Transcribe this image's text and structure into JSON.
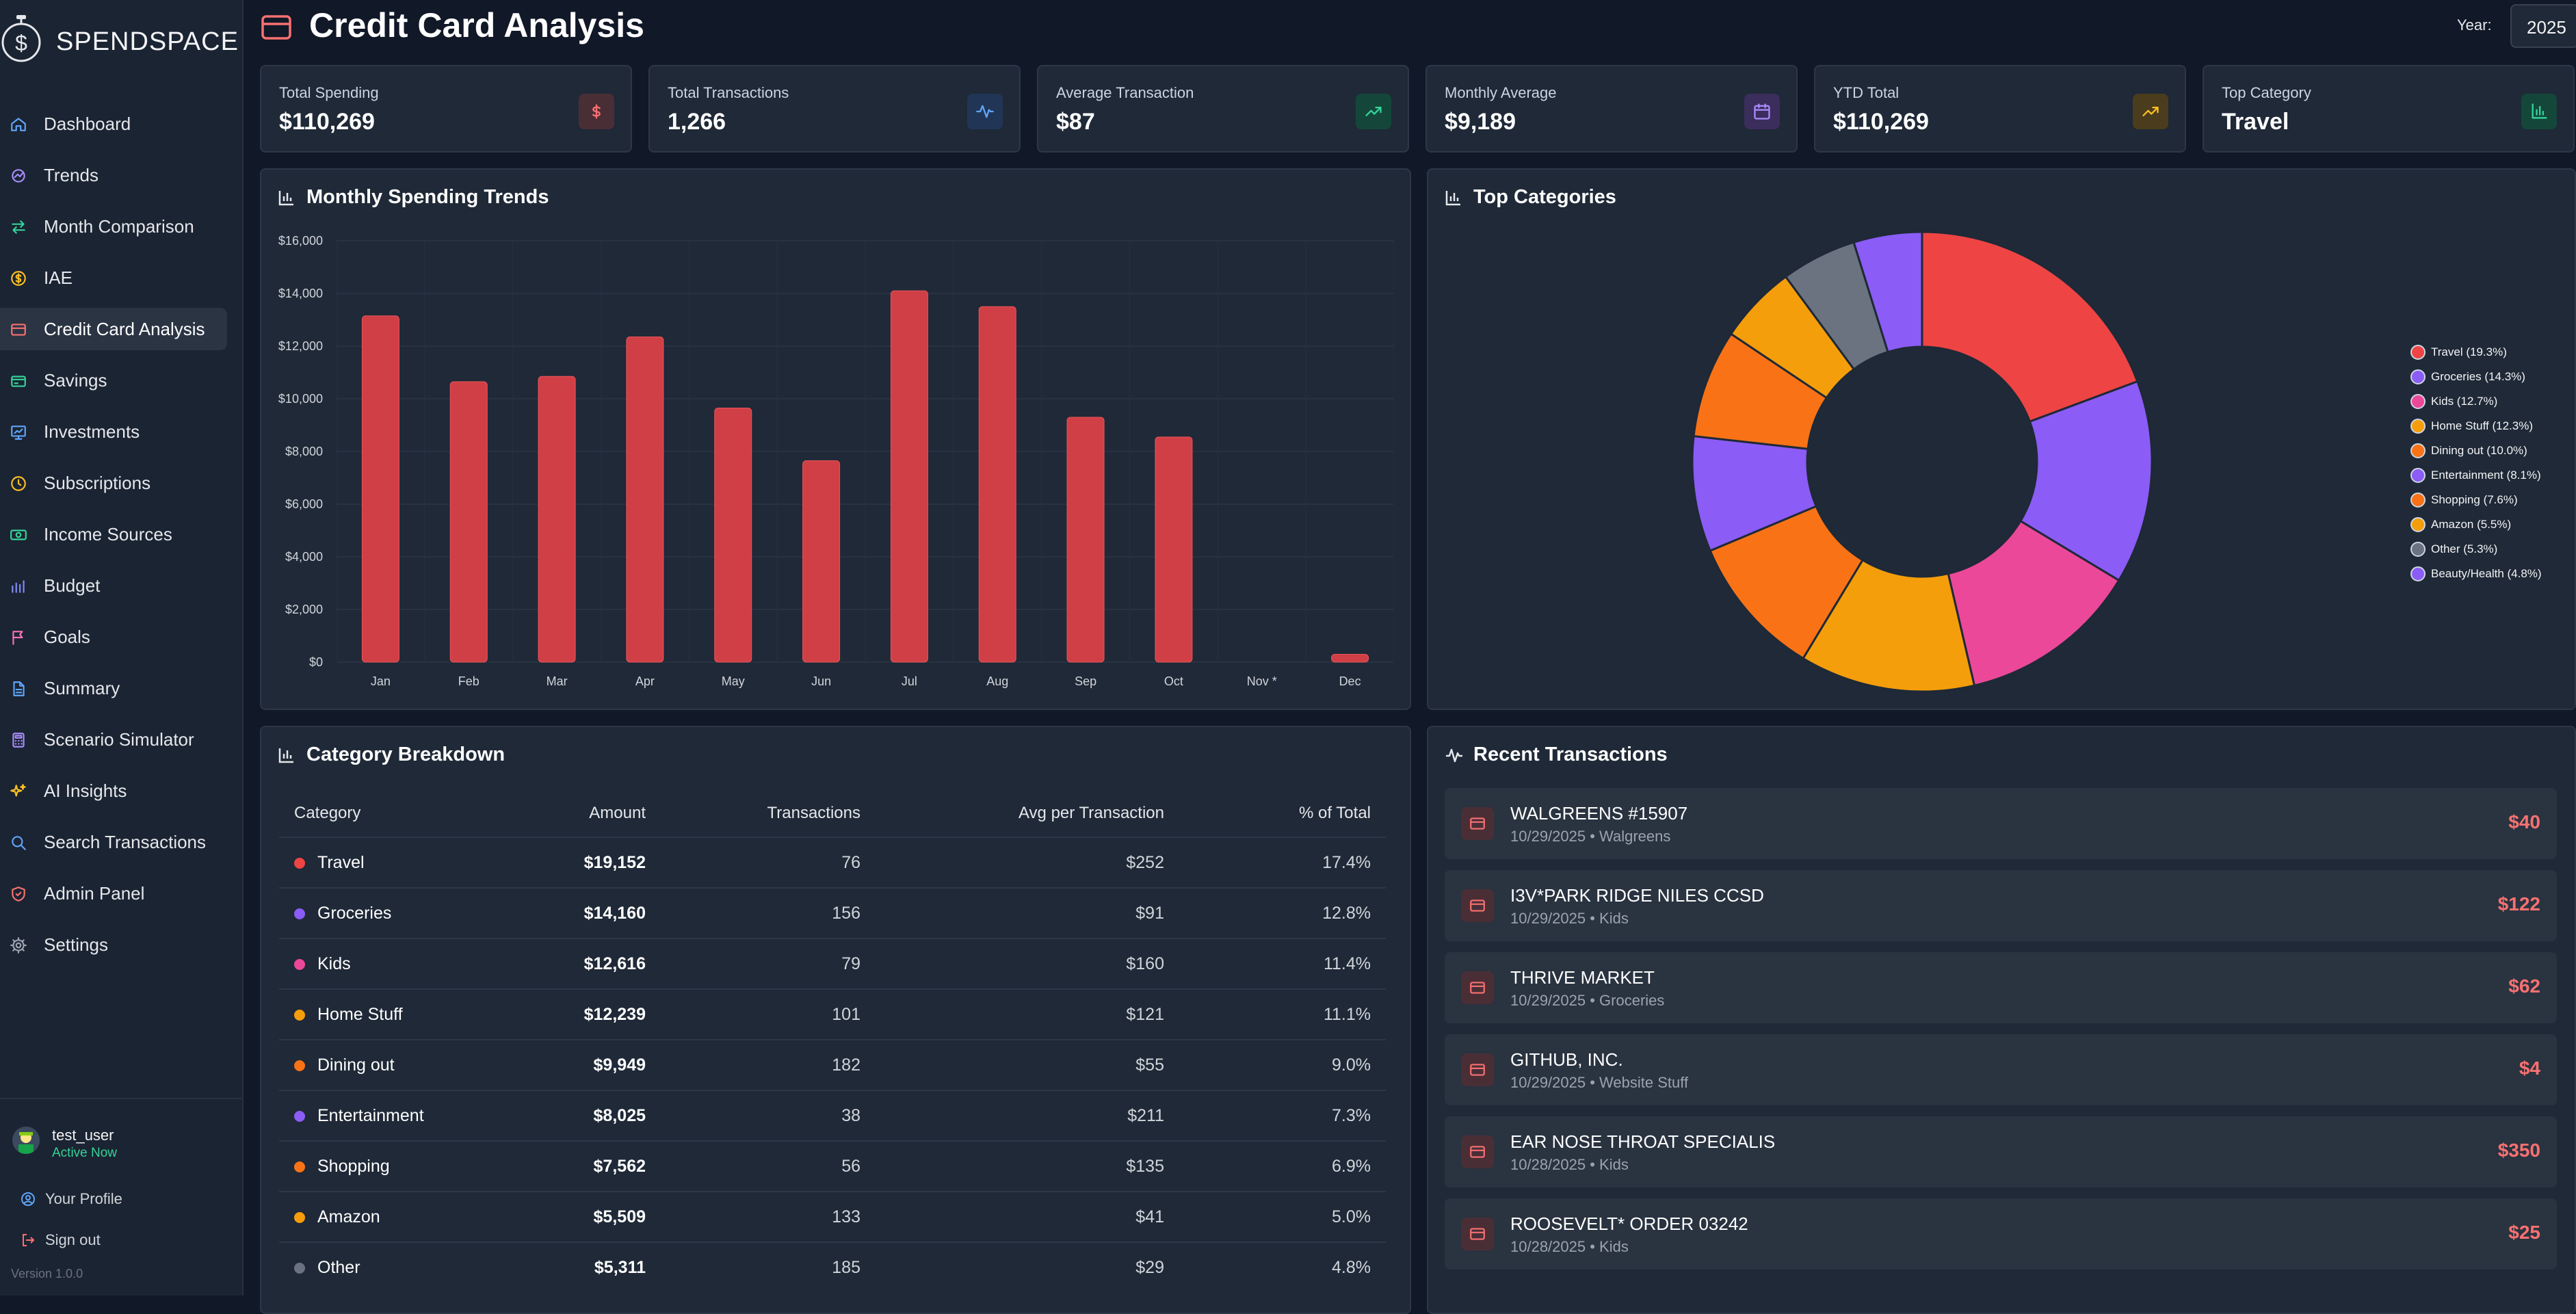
{
  "app": {
    "brand": "SPENDSPACE",
    "version": "Version 1.0.0"
  },
  "sidebar": {
    "items": [
      {
        "label": "Dashboard",
        "icon": "home-icon",
        "color": "#60a5fa"
      },
      {
        "label": "Trends",
        "icon": "trends-icon",
        "color": "#a78bfa"
      },
      {
        "label": "Month Comparison",
        "icon": "arrows-icon",
        "color": "#34d399"
      },
      {
        "label": "IAE",
        "icon": "dollar-circle-icon",
        "color": "#fbbf24"
      },
      {
        "label": "Credit Card Analysis",
        "icon": "credit-card-icon",
        "color": "#f87171"
      },
      {
        "label": "Savings",
        "icon": "savings-icon",
        "color": "#34d399"
      },
      {
        "label": "Investments",
        "icon": "investments-icon",
        "color": "#60a5fa"
      },
      {
        "label": "Subscriptions",
        "icon": "clock-icon",
        "color": "#fbbf24"
      },
      {
        "label": "Income Sources",
        "icon": "money-icon",
        "color": "#34d399"
      },
      {
        "label": "Budget",
        "icon": "budget-icon",
        "color": "#818cf8"
      },
      {
        "label": "Goals",
        "icon": "flag-icon",
        "color": "#f472b6"
      },
      {
        "label": "Summary",
        "icon": "document-icon",
        "color": "#60a5fa"
      },
      {
        "label": "Scenario Simulator",
        "icon": "calculator-icon",
        "color": "#a78bfa"
      },
      {
        "label": "AI Insights",
        "icon": "sparkles-icon",
        "color": "#fbbf24"
      },
      {
        "label": "Search Transactions",
        "icon": "search-icon",
        "color": "#60a5fa"
      },
      {
        "label": "Admin Panel",
        "icon": "shield-icon",
        "color": "#f87171"
      },
      {
        "label": "Settings",
        "icon": "gear-icon",
        "color": "#9ca3af"
      }
    ],
    "active_index": 4
  },
  "user": {
    "name": "test_user",
    "status": "Active Now",
    "profile_label": "Your Profile",
    "signout_label": "Sign out"
  },
  "header": {
    "title": "Credit Card Analysis",
    "year_label": "Year:",
    "year_value": "2025"
  },
  "stats": [
    {
      "label": "Total Spending",
      "value": "$110,269",
      "icon": "dollar-icon",
      "bg": "#4a2e36",
      "fg": "#f87171"
    },
    {
      "label": "Total Transactions",
      "value": "1,266",
      "icon": "activity-icon",
      "bg": "#213656",
      "fg": "#60a5fa"
    },
    {
      "label": "Average Transaction",
      "value": "$87",
      "icon": "trending-up-icon",
      "bg": "#14473a",
      "fg": "#34d399"
    },
    {
      "label": "Monthly Average",
      "value": "$9,189",
      "icon": "calendar-icon",
      "bg": "#3b2d5c",
      "fg": "#a78bfa"
    },
    {
      "label": "YTD Total",
      "value": "$110,269",
      "icon": "trending-up-icon",
      "bg": "#4a3c1c",
      "fg": "#fbbf24"
    },
    {
      "label": "Top Category",
      "value": "Travel",
      "icon": "bar-chart-icon",
      "bg": "#14473a",
      "fg": "#34d399"
    }
  ],
  "panels": {
    "monthly_title": "Monthly Spending Trends",
    "categories_title": "Top Categories",
    "breakdown_title": "Category Breakdown",
    "recent_title": "Recent Transactions"
  },
  "chart_data": [
    {
      "type": "bar",
      "title": "Monthly Spending Trends",
      "categories": [
        "Jan",
        "Feb",
        "Mar",
        "Apr",
        "May",
        "Jun",
        "Jul",
        "Aug",
        "Sep",
        "Oct",
        "Nov *",
        "Dec"
      ],
      "values": [
        13150,
        10650,
        10850,
        12350,
        9650,
        7650,
        14100,
        13500,
        9300,
        8550,
        0,
        300
      ],
      "ylim": [
        0,
        16000
      ],
      "yticks": [
        "$0",
        "$2,000",
        "$4,000",
        "$6,000",
        "$8,000",
        "$10,000",
        "$12,000",
        "$14,000",
        "$16,000"
      ],
      "grid": true,
      "bar_color": "#d03f45"
    },
    {
      "type": "pie",
      "title": "Top Categories",
      "legend_position": "right",
      "slices": [
        {
          "label": "Travel (19.3%)",
          "value": 19.3,
          "color": "#ef4444"
        },
        {
          "label": "Groceries (14.3%)",
          "value": 14.3,
          "color": "#8b5cf6"
        },
        {
          "label": "Kids (12.7%)",
          "value": 12.7,
          "color": "#ec4899"
        },
        {
          "label": "Home Stuff (12.3%)",
          "value": 12.3,
          "color": "#f59e0b"
        },
        {
          "label": "Dining out (10.0%)",
          "value": 10.0,
          "color": "#f97316"
        },
        {
          "label": "Entertainment (8.1%)",
          "value": 8.1,
          "color": "#8b5cf6"
        },
        {
          "label": "Shopping (7.6%)",
          "value": 7.6,
          "color": "#f97316"
        },
        {
          "label": "Amazon (5.5%)",
          "value": 5.5,
          "color": "#f59e0b"
        },
        {
          "label": "Other (5.3%)",
          "value": 5.3,
          "color": "#6b7280"
        },
        {
          "label": "Beauty/Health (4.8%)",
          "value": 4.8,
          "color": "#8b5cf6"
        }
      ]
    }
  ],
  "breakdown": {
    "headers": [
      "Category",
      "Amount",
      "Transactions",
      "Avg per Transaction",
      "% of Total"
    ],
    "rows": [
      {
        "category": "Travel",
        "amount": "$19,152",
        "transactions": "76",
        "avg": "$252",
        "pct": "17.4%",
        "color": "#ef4444"
      },
      {
        "category": "Groceries",
        "amount": "$14,160",
        "transactions": "156",
        "avg": "$91",
        "pct": "12.8%",
        "color": "#8b5cf6"
      },
      {
        "category": "Kids",
        "amount": "$12,616",
        "transactions": "79",
        "avg": "$160",
        "pct": "11.4%",
        "color": "#ec4899"
      },
      {
        "category": "Home Stuff",
        "amount": "$12,239",
        "transactions": "101",
        "avg": "$121",
        "pct": "11.1%",
        "color": "#f59e0b"
      },
      {
        "category": "Dining out",
        "amount": "$9,949",
        "transactions": "182",
        "avg": "$55",
        "pct": "9.0%",
        "color": "#f97316"
      },
      {
        "category": "Entertainment",
        "amount": "$8,025",
        "transactions": "38",
        "avg": "$211",
        "pct": "7.3%",
        "color": "#8b5cf6"
      },
      {
        "category": "Shopping",
        "amount": "$7,562",
        "transactions": "56",
        "avg": "$135",
        "pct": "6.9%",
        "color": "#f97316"
      },
      {
        "category": "Amazon",
        "amount": "$5,509",
        "transactions": "133",
        "avg": "$41",
        "pct": "5.0%",
        "color": "#f59e0b"
      },
      {
        "category": "Other",
        "amount": "$5,311",
        "transactions": "185",
        "avg": "$29",
        "pct": "4.8%",
        "color": "#6b7280"
      }
    ]
  },
  "transactions": [
    {
      "name": "WALGREENS #15907",
      "date": "10/29/2025",
      "category": "Walgreens",
      "amount": "$40"
    },
    {
      "name": "I3V*PARK RIDGE NILES CCSD",
      "date": "10/29/2025",
      "category": "Kids",
      "amount": "$122"
    },
    {
      "name": "THRIVE MARKET",
      "date": "10/29/2025",
      "category": "Groceries",
      "amount": "$62"
    },
    {
      "name": "GITHUB, INC.",
      "date": "10/29/2025",
      "category": "Website Stuff",
      "amount": "$4"
    },
    {
      "name": "EAR NOSE THROAT SPECIALIS",
      "date": "10/28/2025",
      "category": "Kids",
      "amount": "$350"
    },
    {
      "name": "ROOSEVELT* ORDER 03242",
      "date": "10/28/2025",
      "category": "Kids",
      "amount": "$25"
    }
  ]
}
